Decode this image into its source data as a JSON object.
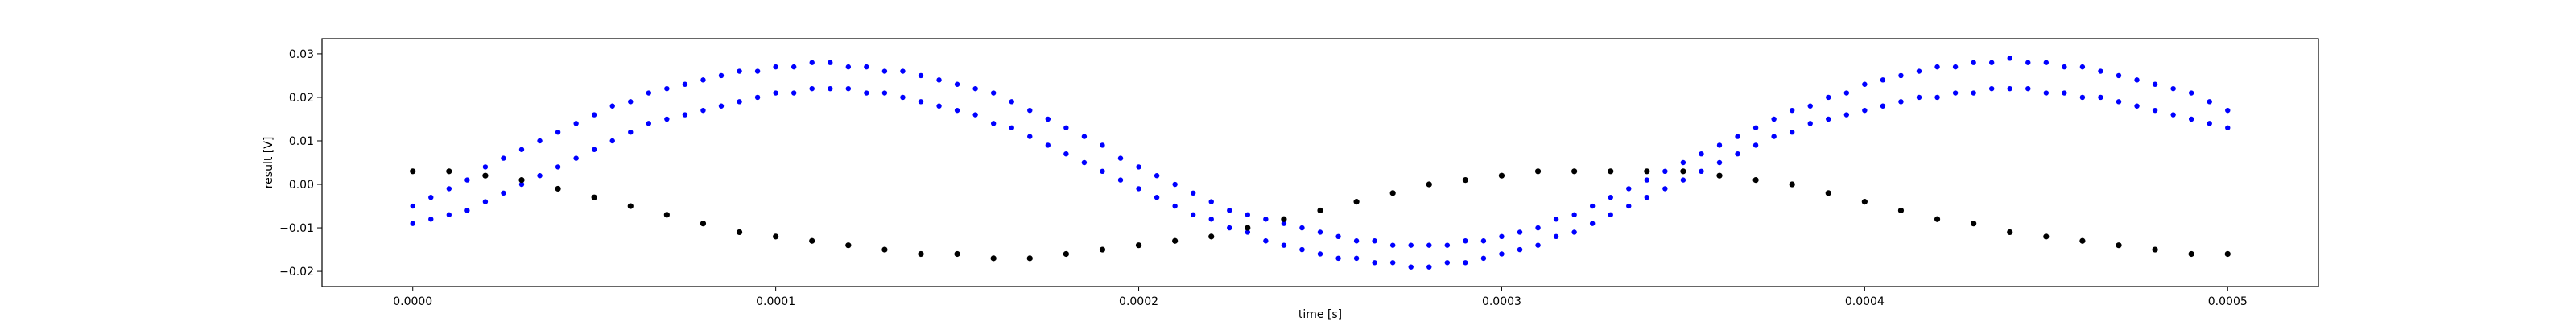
{
  "chart_data": {
    "type": "scatter",
    "title": "",
    "xlabel": "time [s]",
    "ylabel": "result [V]",
    "xlim": [
      -2.5e-05,
      0.000525
    ],
    "ylim": [
      -0.0235,
      0.0335
    ],
    "xticks": [
      0.0,
      0.0001,
      0.0002,
      0.0003,
      0.0004,
      0.0005
    ],
    "xtick_labels": [
      "0.0000",
      "0.0001",
      "0.0002",
      "0.0003",
      "0.0004",
      "0.0005"
    ],
    "yticks": [
      -0.02,
      -0.01,
      0.0,
      0.01,
      0.02,
      0.03
    ],
    "ytick_labels": [
      "−0.02",
      "−0.01",
      "0.00",
      "0.01",
      "0.02",
      "0.03"
    ],
    "grid": false,
    "legend": "none",
    "series": [
      {
        "color": "#0000ff",
        "marker": "dot",
        "description": "two interleaved noisy sinusoids (amplitude ~0.025 V)",
        "points": [
          [
            0.0,
            -0.009
          ],
          [
            0.0,
            -0.005
          ],
          [
            5e-06,
            -0.008
          ],
          [
            5e-06,
            -0.003
          ],
          [
            1e-05,
            -0.007
          ],
          [
            1e-05,
            -0.001
          ],
          [
            1.5e-05,
            -0.006
          ],
          [
            1.5e-05,
            0.001
          ],
          [
            2e-05,
            -0.004
          ],
          [
            2e-05,
            0.004
          ],
          [
            2.5e-05,
            -0.002
          ],
          [
            2.5e-05,
            0.006
          ],
          [
            3e-05,
            0.0
          ],
          [
            3e-05,
            0.008
          ],
          [
            3.5e-05,
            0.002
          ],
          [
            3.5e-05,
            0.01
          ],
          [
            4e-05,
            0.004
          ],
          [
            4e-05,
            0.012
          ],
          [
            4.5e-05,
            0.006
          ],
          [
            4.5e-05,
            0.014
          ],
          [
            5e-05,
            0.008
          ],
          [
            5e-05,
            0.016
          ],
          [
            5.5e-05,
            0.01
          ],
          [
            5.5e-05,
            0.018
          ],
          [
            6e-05,
            0.012
          ],
          [
            6e-05,
            0.019
          ],
          [
            6.5e-05,
            0.014
          ],
          [
            6.5e-05,
            0.021
          ],
          [
            7e-05,
            0.015
          ],
          [
            7e-05,
            0.022
          ],
          [
            7.5e-05,
            0.016
          ],
          [
            7.5e-05,
            0.023
          ],
          [
            8e-05,
            0.017
          ],
          [
            8e-05,
            0.024
          ],
          [
            8.5e-05,
            0.018
          ],
          [
            8.5e-05,
            0.025
          ],
          [
            9e-05,
            0.019
          ],
          [
            9e-05,
            0.026
          ],
          [
            9.5e-05,
            0.02
          ],
          [
            9.5e-05,
            0.026
          ],
          [
            0.0001,
            0.021
          ],
          [
            0.0001,
            0.027
          ],
          [
            0.000105,
            0.021
          ],
          [
            0.000105,
            0.027
          ],
          [
            0.00011,
            0.022
          ],
          [
            0.00011,
            0.028
          ],
          [
            0.000115,
            0.022
          ],
          [
            0.000115,
            0.028
          ],
          [
            0.00012,
            0.022
          ],
          [
            0.00012,
            0.027
          ],
          [
            0.000125,
            0.021
          ],
          [
            0.000125,
            0.027
          ],
          [
            0.00013,
            0.021
          ],
          [
            0.00013,
            0.026
          ],
          [
            0.000135,
            0.02
          ],
          [
            0.000135,
            0.026
          ],
          [
            0.00014,
            0.019
          ],
          [
            0.00014,
            0.025
          ],
          [
            0.000145,
            0.018
          ],
          [
            0.000145,
            0.024
          ],
          [
            0.00015,
            0.017
          ],
          [
            0.00015,
            0.023
          ],
          [
            0.000155,
            0.016
          ],
          [
            0.000155,
            0.022
          ],
          [
            0.00016,
            0.014
          ],
          [
            0.00016,
            0.021
          ],
          [
            0.000165,
            0.013
          ],
          [
            0.000165,
            0.019
          ],
          [
            0.00017,
            0.011
          ],
          [
            0.00017,
            0.017
          ],
          [
            0.000175,
            0.009
          ],
          [
            0.000175,
            0.015
          ],
          [
            0.00018,
            0.007
          ],
          [
            0.00018,
            0.013
          ],
          [
            0.000185,
            0.005
          ],
          [
            0.000185,
            0.011
          ],
          [
            0.00019,
            0.003
          ],
          [
            0.00019,
            0.009
          ],
          [
            0.000195,
            0.001
          ],
          [
            0.000195,
            0.006
          ],
          [
            0.0002,
            -0.001
          ],
          [
            0.0002,
            0.004
          ],
          [
            0.000205,
            -0.003
          ],
          [
            0.000205,
            0.002
          ],
          [
            0.00021,
            -0.005
          ],
          [
            0.00021,
            0.0
          ],
          [
            0.000215,
            -0.007
          ],
          [
            0.000215,
            -0.002
          ],
          [
            0.00022,
            -0.008
          ],
          [
            0.00022,
            -0.004
          ],
          [
            0.000225,
            -0.01
          ],
          [
            0.000225,
            -0.006
          ],
          [
            0.00023,
            -0.011
          ],
          [
            0.00023,
            -0.007
          ],
          [
            0.000235,
            -0.013
          ],
          [
            0.000235,
            -0.008
          ],
          [
            0.00024,
            -0.014
          ],
          [
            0.00024,
            -0.009
          ],
          [
            0.000245,
            -0.015
          ],
          [
            0.000245,
            -0.01
          ],
          [
            0.00025,
            -0.016
          ],
          [
            0.00025,
            -0.011
          ],
          [
            0.000255,
            -0.017
          ],
          [
            0.000255,
            -0.012
          ],
          [
            0.00026,
            -0.017
          ],
          [
            0.00026,
            -0.013
          ],
          [
            0.000265,
            -0.018
          ],
          [
            0.000265,
            -0.013
          ],
          [
            0.00027,
            -0.018
          ],
          [
            0.00027,
            -0.014
          ],
          [
            0.000275,
            -0.019
          ],
          [
            0.000275,
            -0.014
          ],
          [
            0.00028,
            -0.019
          ],
          [
            0.00028,
            -0.014
          ],
          [
            0.000285,
            -0.018
          ],
          [
            0.000285,
            -0.014
          ],
          [
            0.00029,
            -0.018
          ],
          [
            0.00029,
            -0.013
          ],
          [
            0.000295,
            -0.017
          ],
          [
            0.000295,
            -0.013
          ],
          [
            0.0003,
            -0.016
          ],
          [
            0.0003,
            -0.012
          ],
          [
            0.000305,
            -0.015
          ],
          [
            0.000305,
            -0.011
          ],
          [
            0.00031,
            -0.014
          ],
          [
            0.00031,
            -0.01
          ],
          [
            0.000315,
            -0.012
          ],
          [
            0.000315,
            -0.008
          ],
          [
            0.00032,
            -0.011
          ],
          [
            0.00032,
            -0.007
          ],
          [
            0.000325,
            -0.009
          ],
          [
            0.000325,
            -0.005
          ],
          [
            0.00033,
            -0.007
          ],
          [
            0.00033,
            -0.003
          ],
          [
            0.000335,
            -0.005
          ],
          [
            0.000335,
            -0.001
          ],
          [
            0.00034,
            -0.003
          ],
          [
            0.00034,
            0.001
          ],
          [
            0.000345,
            -0.001
          ],
          [
            0.000345,
            0.003
          ],
          [
            0.00035,
            0.001
          ],
          [
            0.00035,
            0.005
          ],
          [
            0.000355,
            0.003
          ],
          [
            0.000355,
            0.007
          ],
          [
            0.00036,
            0.005
          ],
          [
            0.00036,
            0.009
          ],
          [
            0.000365,
            0.007
          ],
          [
            0.000365,
            0.011
          ],
          [
            0.00037,
            0.009
          ],
          [
            0.00037,
            0.013
          ],
          [
            0.000375,
            0.011
          ],
          [
            0.000375,
            0.015
          ],
          [
            0.00038,
            0.012
          ],
          [
            0.00038,
            0.017
          ],
          [
            0.000385,
            0.014
          ],
          [
            0.000385,
            0.018
          ],
          [
            0.00039,
            0.015
          ],
          [
            0.00039,
            0.02
          ],
          [
            0.000395,
            0.016
          ],
          [
            0.000395,
            0.021
          ],
          [
            0.0004,
            0.017
          ],
          [
            0.0004,
            0.023
          ],
          [
            0.000405,
            0.018
          ],
          [
            0.000405,
            0.024
          ],
          [
            0.00041,
            0.019
          ],
          [
            0.00041,
            0.025
          ],
          [
            0.000415,
            0.02
          ],
          [
            0.000415,
            0.026
          ],
          [
            0.00042,
            0.02
          ],
          [
            0.00042,
            0.027
          ],
          [
            0.000425,
            0.021
          ],
          [
            0.000425,
            0.027
          ],
          [
            0.00043,
            0.021
          ],
          [
            0.00043,
            0.028
          ],
          [
            0.000435,
            0.022
          ],
          [
            0.000435,
            0.028
          ],
          [
            0.00044,
            0.022
          ],
          [
            0.00044,
            0.029
          ],
          [
            0.000445,
            0.022
          ],
          [
            0.000445,
            0.028
          ],
          [
            0.00045,
            0.021
          ],
          [
            0.00045,
            0.028
          ],
          [
            0.000455,
            0.021
          ],
          [
            0.000455,
            0.027
          ],
          [
            0.00046,
            0.02
          ],
          [
            0.00046,
            0.027
          ],
          [
            0.000465,
            0.02
          ],
          [
            0.000465,
            0.026
          ],
          [
            0.00047,
            0.019
          ],
          [
            0.00047,
            0.025
          ],
          [
            0.000475,
            0.018
          ],
          [
            0.000475,
            0.024
          ],
          [
            0.00048,
            0.017
          ],
          [
            0.00048,
            0.023
          ],
          [
            0.000485,
            0.016
          ],
          [
            0.000485,
            0.022
          ],
          [
            0.00049,
            0.015
          ],
          [
            0.00049,
            0.021
          ],
          [
            0.000495,
            0.014
          ],
          [
            0.000495,
            0.019
          ],
          [
            0.0005,
            0.013
          ],
          [
            0.0005,
            0.017
          ]
        ]
      },
      {
        "color": "#000000",
        "marker": "dot",
        "description": "dense low-amplitude sinusoid (amplitude ~0.01 V)",
        "points": [
          [
            0.0,
            0.003
          ],
          [
            1e-05,
            0.003
          ],
          [
            2e-05,
            0.002
          ],
          [
            3e-05,
            0.001
          ],
          [
            4e-05,
            -0.001
          ],
          [
            5e-05,
            -0.003
          ],
          [
            6e-05,
            -0.005
          ],
          [
            7e-05,
            -0.007
          ],
          [
            8e-05,
            -0.009
          ],
          [
            9e-05,
            -0.011
          ],
          [
            0.0001,
            -0.012
          ],
          [
            0.00011,
            -0.013
          ],
          [
            0.00012,
            -0.014
          ],
          [
            0.00013,
            -0.015
          ],
          [
            0.00014,
            -0.016
          ],
          [
            0.00015,
            -0.016
          ],
          [
            0.00016,
            -0.017
          ],
          [
            0.00017,
            -0.017
          ],
          [
            0.00018,
            -0.016
          ],
          [
            0.00019,
            -0.015
          ],
          [
            0.0002,
            -0.014
          ],
          [
            0.00021,
            -0.013
          ],
          [
            0.00022,
            -0.012
          ],
          [
            0.00023,
            -0.01
          ],
          [
            0.00024,
            -0.008
          ],
          [
            0.00025,
            -0.006
          ],
          [
            0.00026,
            -0.004
          ],
          [
            0.00027,
            -0.002
          ],
          [
            0.00028,
            0.0
          ],
          [
            0.00029,
            0.001
          ],
          [
            0.0003,
            0.002
          ],
          [
            0.00031,
            0.003
          ],
          [
            0.00032,
            0.003
          ],
          [
            0.00033,
            0.003
          ],
          [
            0.00034,
            0.003
          ],
          [
            0.00035,
            0.003
          ],
          [
            0.00036,
            0.002
          ],
          [
            0.00037,
            0.001
          ],
          [
            0.00038,
            0.0
          ],
          [
            0.00039,
            -0.002
          ],
          [
            0.0004,
            -0.004
          ],
          [
            0.00041,
            -0.006
          ],
          [
            0.00042,
            -0.008
          ],
          [
            0.00043,
            -0.009
          ],
          [
            0.00044,
            -0.011
          ],
          [
            0.00045,
            -0.012
          ],
          [
            0.00046,
            -0.013
          ],
          [
            0.00047,
            -0.014
          ],
          [
            0.00048,
            -0.015
          ],
          [
            0.00049,
            -0.016
          ],
          [
            0.0005,
            -0.016
          ]
        ]
      }
    ]
  }
}
